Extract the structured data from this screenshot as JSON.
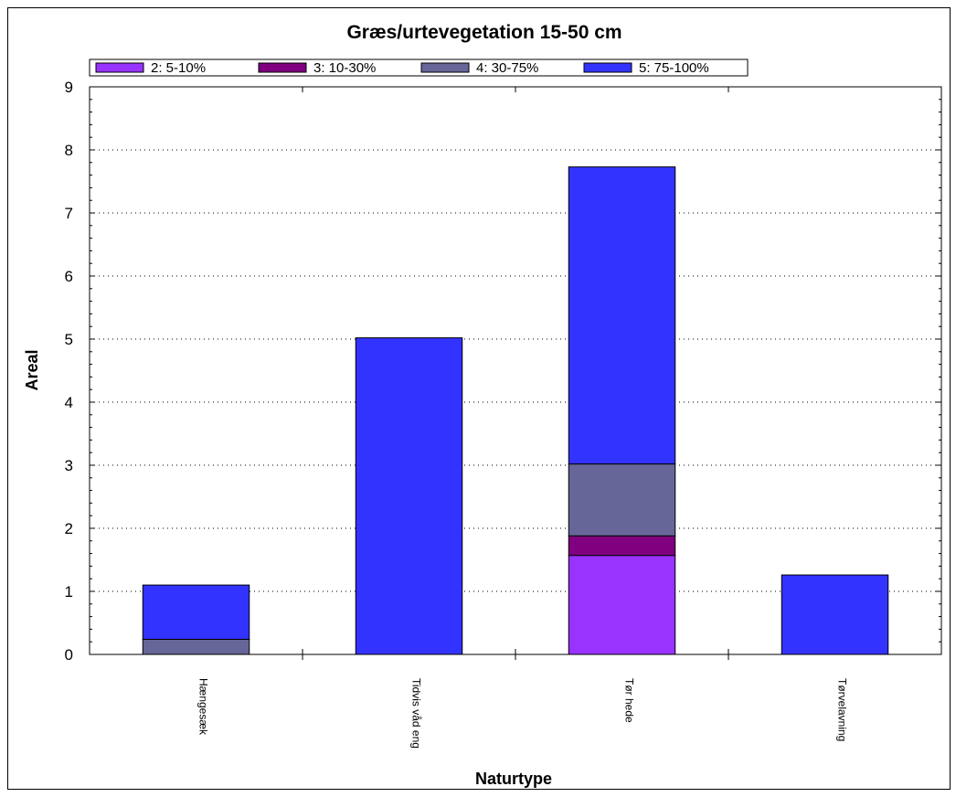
{
  "chart_data": {
    "type": "bar",
    "stacked": true,
    "title": "Græs/urtevegetation 15-50 cm",
    "xlabel": "Naturtype",
    "ylabel": "Areal",
    "ylim": [
      0,
      9
    ],
    "yticks": [
      "0",
      "1",
      "2",
      "3",
      "4",
      "5",
      "6",
      "7",
      "8",
      "9"
    ],
    "grid": true,
    "legend_position": "top",
    "categories": [
      "Hængesæk",
      "Tidvis våd eng",
      "Tør hede",
      "Tørvelavning"
    ],
    "series": [
      {
        "name": "2: 5-10%",
        "color": "#9933ff",
        "values": [
          0,
          0,
          1.57,
          0
        ]
      },
      {
        "name": "3: 10-30%",
        "color": "#800080",
        "values": [
          0,
          0,
          0.31,
          0
        ]
      },
      {
        "name": "4: 30-75%",
        "color": "#666699",
        "values": [
          0.24,
          0,
          1.14,
          0
        ]
      },
      {
        "name": "5: 75-100%",
        "color": "#3333ff",
        "values": [
          0.86,
          5.02,
          4.71,
          1.26
        ]
      }
    ]
  }
}
